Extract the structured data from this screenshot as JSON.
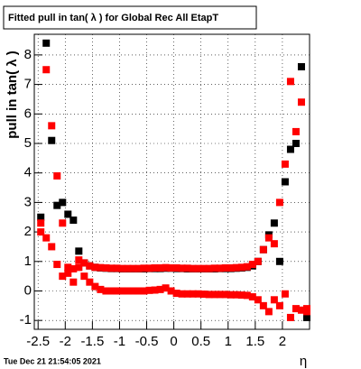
{
  "chart_data": {
    "type": "scatter",
    "title": "Fitted pull in tan( λ ) for Global Rec All EtapT",
    "y_label": "pull in tan( λ )",
    "x_label": "η",
    "timestamp": "Tue Dec 21 21:54:05 2021",
    "x": [
      -2.45,
      -2.35,
      -2.25,
      -2.15,
      -2.05,
      -1.95,
      -1.85,
      -1.75,
      -1.65,
      -1.55,
      -1.45,
      -1.35,
      -1.25,
      -1.15,
      -1.05,
      -0.95,
      -0.85,
      -0.75,
      -0.65,
      -0.55,
      -0.45,
      -0.35,
      -0.25,
      -0.15,
      -0.05,
      0.05,
      0.15,
      0.25,
      0.35,
      0.45,
      0.55,
      0.65,
      0.75,
      0.85,
      0.95,
      1.05,
      1.15,
      1.25,
      1.35,
      1.45,
      1.55,
      1.65,
      1.75,
      1.85,
      1.95,
      2.05,
      2.15,
      2.25,
      2.35,
      2.45
    ],
    "series": [
      {
        "color": "#000000",
        "values": [
          2.5,
          8.4,
          5.1,
          2.9,
          3.0,
          2.6,
          2.4,
          1.35,
          0.95,
          0.85,
          0.8,
          0.78,
          0.77,
          0.76,
          0.76,
          0.75,
          0.75,
          0.75,
          0.75,
          0.75,
          0.76,
          0.76,
          0.76,
          0.77,
          0.77,
          0.76,
          0.76,
          0.75,
          0.75,
          0.75,
          0.75,
          0.75,
          0.75,
          0.76,
          0.76,
          0.76,
          0.77,
          0.78,
          0.8,
          0.85,
          1.0,
          1.4,
          1.9,
          2.3,
          1.0,
          3.7,
          4.8,
          5.0,
          7.6,
          -0.9
        ]
      },
      {
        "color": "#ff0000",
        "values": [
          2.3,
          7.5,
          5.6,
          3.9,
          2.3,
          0.8,
          0.75,
          1.05,
          0.95,
          0.85,
          0.8,
          0.79,
          0.78,
          0.77,
          0.77,
          0.76,
          0.76,
          0.76,
          0.76,
          0.77,
          0.77,
          0.78,
          0.78,
          0.79,
          0.78,
          0.78,
          0.77,
          0.77,
          0.76,
          0.76,
          0.76,
          0.76,
          0.77,
          0.77,
          0.78,
          0.78,
          0.79,
          0.8,
          0.82,
          0.9,
          1.0,
          1.4,
          1.8,
          1.6,
          3.0,
          4.3,
          7.1,
          5.4,
          6.4,
          -0.7
        ]
      },
      {
        "color": "#ff0000",
        "values": [
          2.0,
          1.8,
          1.5,
          0.9,
          0.5,
          0.6,
          0.3,
          0.8,
          0.5,
          0.3,
          0.15,
          0.05,
          0.0,
          0.0,
          0.0,
          0.0,
          0.0,
          0.0,
          0.0,
          0.0,
          0.02,
          0.03,
          0.05,
          0.1,
          0.0,
          -0.08,
          -0.1,
          -0.1,
          -0.1,
          -0.1,
          -0.11,
          -0.12,
          -0.12,
          -0.12,
          -0.12,
          -0.13,
          -0.13,
          -0.14,
          -0.15,
          -0.2,
          -0.3,
          -0.5,
          -0.7,
          -0.3,
          -0.5,
          -0.1,
          -0.9,
          -0.6,
          -0.65,
          -0.6
        ]
      }
    ],
    "xlim": [
      -2.57,
      2.5
    ],
    "ylim": [
      -1.3,
      8.7
    ],
    "xticks": [
      -2.5,
      -2,
      -1.5,
      -1,
      -0.5,
      0,
      0.5,
      1,
      1.5,
      2
    ],
    "yticks": [
      -1,
      0,
      1,
      2,
      3,
      4,
      5,
      6,
      7,
      8
    ],
    "grid": true
  }
}
